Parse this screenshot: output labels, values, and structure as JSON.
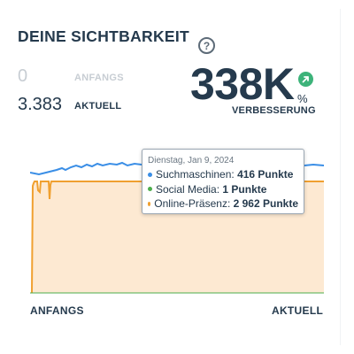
{
  "header": {
    "title": "DEINE SICHTBARKEIT",
    "help_icon": "question-circle-icon"
  },
  "stats": {
    "start_value": "0",
    "start_label": "ANFANGS",
    "current_value": "3.383",
    "current_label": "AKTUELL",
    "big_value": "338K",
    "percent_sign": "%",
    "improve_label": "VERBESSERUNG",
    "trend_icon": "arrow-up-right-icon"
  },
  "tooltip": {
    "date": "Dienstag, Jan 9, 2024",
    "rows": [
      {
        "label": "Suchmaschinen:",
        "value": "416 Punkte",
        "color": "#3a8ee6"
      },
      {
        "label": "Social Media:",
        "value": "1 Punkte",
        "color": "#4cae4c"
      },
      {
        "label": "Online-Präsenz:",
        "value": "2 962 Punkte",
        "color": "#f0a030"
      }
    ]
  },
  "colors": {
    "orange_line": "#f0a030",
    "orange_fill": "#fde9d2",
    "blue_line": "#3a8ee6",
    "text": "#253a4d"
  },
  "chart_data": {
    "type": "area",
    "x_start_label": "ANFANGS",
    "x_end_label": "AKTUELL",
    "series": [
      {
        "name": "Online-Präsenz"
      },
      {
        "name": "Suchmaschinen"
      },
      {
        "name": "Social Media"
      }
    ]
  }
}
